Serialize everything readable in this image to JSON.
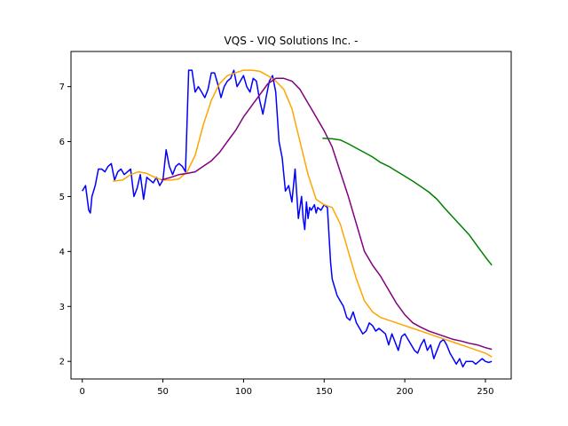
{
  "chart_data": {
    "type": "line",
    "title": "VQS - VIQ Solutions Inc. -",
    "xlabel": "",
    "ylabel": "",
    "xlim": [
      -7,
      266
    ],
    "ylim": [
      1.68,
      7.64
    ],
    "xticks": [
      0,
      50,
      100,
      150,
      200,
      250
    ],
    "yticks": [
      2,
      3,
      4,
      5,
      6,
      7
    ],
    "grid": false,
    "series": [
      {
        "color": "#0000ff",
        "x": [
          0,
          2,
          4,
          5,
          6,
          8,
          10,
          12,
          14,
          16,
          18,
          20,
          22,
          24,
          26,
          28,
          30,
          32,
          34,
          36,
          38,
          40,
          42,
          44,
          46,
          48,
          50,
          52,
          54,
          56,
          58,
          60,
          62,
          64,
          66,
          68,
          70,
          72,
          74,
          76,
          78,
          80,
          82,
          84,
          86,
          88,
          90,
          92,
          94,
          96,
          98,
          100,
          102,
          104,
          106,
          108,
          110,
          112,
          114,
          116,
          118,
          120,
          122,
          124,
          126,
          128,
          130,
          132,
          134,
          136,
          137,
          138,
          139,
          140,
          141,
          142,
          143,
          144,
          145,
          146,
          148,
          150,
          152,
          154,
          155,
          156,
          157,
          158,
          160,
          162,
          164,
          166,
          168,
          170,
          172,
          174,
          176,
          178,
          180,
          182,
          184,
          186,
          188,
          190,
          192,
          194,
          196,
          198,
          200,
          202,
          204,
          206,
          208,
          210,
          212,
          214,
          216,
          218,
          220,
          222,
          224,
          226,
          228,
          230,
          232,
          234,
          236,
          238,
          240,
          242,
          244,
          246,
          248,
          250,
          252,
          254
        ],
        "y": [
          5.1,
          5.2,
          4.75,
          4.7,
          5.0,
          5.2,
          5.5,
          5.5,
          5.45,
          5.55,
          5.6,
          5.3,
          5.45,
          5.5,
          5.4,
          5.45,
          5.5,
          5.0,
          5.15,
          5.4,
          4.95,
          5.35,
          5.3,
          5.25,
          5.35,
          5.2,
          5.3,
          5.85,
          5.55,
          5.4,
          5.55,
          5.6,
          5.55,
          5.45,
          7.3,
          7.3,
          6.9,
          7.0,
          6.9,
          6.8,
          6.95,
          7.25,
          7.25,
          7.05,
          6.8,
          7.0,
          7.1,
          7.15,
          7.3,
          7.0,
          7.1,
          7.2,
          7.0,
          6.9,
          7.15,
          7.1,
          6.75,
          6.5,
          6.8,
          7.1,
          7.2,
          6.9,
          6.0,
          5.7,
          5.1,
          5.2,
          4.9,
          5.5,
          4.6,
          5.0,
          4.6,
          4.4,
          4.9,
          4.6,
          4.8,
          4.75,
          4.8,
          4.85,
          4.7,
          4.8,
          4.75,
          4.85,
          4.8,
          3.8,
          3.5,
          3.4,
          3.3,
          3.2,
          3.1,
          3.0,
          2.8,
          2.75,
          2.9,
          2.7,
          2.6,
          2.5,
          2.55,
          2.7,
          2.65,
          2.55,
          2.6,
          2.55,
          2.5,
          2.3,
          2.5,
          2.35,
          2.2,
          2.45,
          2.5,
          2.4,
          2.3,
          2.2,
          2.15,
          2.3,
          2.4,
          2.2,
          2.3,
          2.05,
          2.2,
          2.35,
          2.4,
          2.3,
          2.15,
          2.05,
          1.95,
          2.05,
          1.9,
          2.0,
          2.0,
          2.0,
          1.95,
          2.0,
          2.05,
          2.0,
          1.98,
          2.0
        ],
        "y_fix": null
      },
      {
        "color": "#ffa500",
        "x": [
          19,
          25,
          30,
          35,
          40,
          45,
          50,
          55,
          60,
          65,
          70,
          75,
          80,
          85,
          90,
          95,
          100,
          105,
          110,
          115,
          120,
          125,
          130,
          135,
          140,
          145,
          150,
          155,
          160,
          165,
          170,
          175,
          180,
          185,
          190,
          195,
          200,
          205,
          210,
          215,
          220,
          225,
          230,
          235,
          240,
          245,
          250,
          254
        ],
        "y": [
          5.28,
          5.3,
          5.4,
          5.45,
          5.42,
          5.35,
          5.3,
          5.3,
          5.32,
          5.45,
          5.75,
          6.3,
          6.75,
          7.05,
          7.2,
          7.25,
          7.3,
          7.3,
          7.28,
          7.2,
          7.1,
          6.95,
          6.6,
          6.0,
          5.4,
          4.95,
          4.85,
          4.8,
          4.5,
          4.0,
          3.5,
          3.1,
          2.9,
          2.8,
          2.75,
          2.7,
          2.65,
          2.6,
          2.55,
          2.5,
          2.45,
          2.4,
          2.35,
          2.3,
          2.25,
          2.2,
          2.15,
          2.08
        ]
      },
      {
        "color": "#800080",
        "x": [
          49,
          55,
          60,
          65,
          70,
          75,
          80,
          85,
          90,
          95,
          100,
          105,
          110,
          115,
          120,
          125,
          130,
          135,
          140,
          145,
          150,
          155,
          160,
          165,
          170,
          175,
          180,
          185,
          190,
          195,
          200,
          205,
          210,
          215,
          220,
          225,
          230,
          235,
          240,
          245,
          250,
          254
        ],
        "y": [
          5.3,
          5.35,
          5.4,
          5.42,
          5.45,
          5.55,
          5.65,
          5.8,
          6.0,
          6.2,
          6.45,
          6.65,
          6.85,
          7.05,
          7.15,
          7.15,
          7.1,
          6.95,
          6.7,
          6.45,
          6.2,
          5.9,
          5.45,
          5.0,
          4.5,
          4.0,
          3.75,
          3.55,
          3.3,
          3.05,
          2.85,
          2.7,
          2.62,
          2.55,
          2.5,
          2.45,
          2.4,
          2.37,
          2.33,
          2.3,
          2.25,
          2.22
        ]
      },
      {
        "color": "#008000",
        "x": [
          149,
          155,
          160,
          165,
          170,
          175,
          180,
          185,
          190,
          195,
          200,
          205,
          210,
          215,
          220,
          225,
          230,
          235,
          240,
          245,
          250,
          254
        ],
        "y": [
          6.06,
          6.05,
          6.03,
          5.96,
          5.88,
          5.8,
          5.72,
          5.62,
          5.55,
          5.46,
          5.37,
          5.28,
          5.18,
          5.08,
          4.95,
          4.78,
          4.62,
          4.46,
          4.3,
          4.1,
          3.9,
          3.75
        ]
      }
    ]
  }
}
